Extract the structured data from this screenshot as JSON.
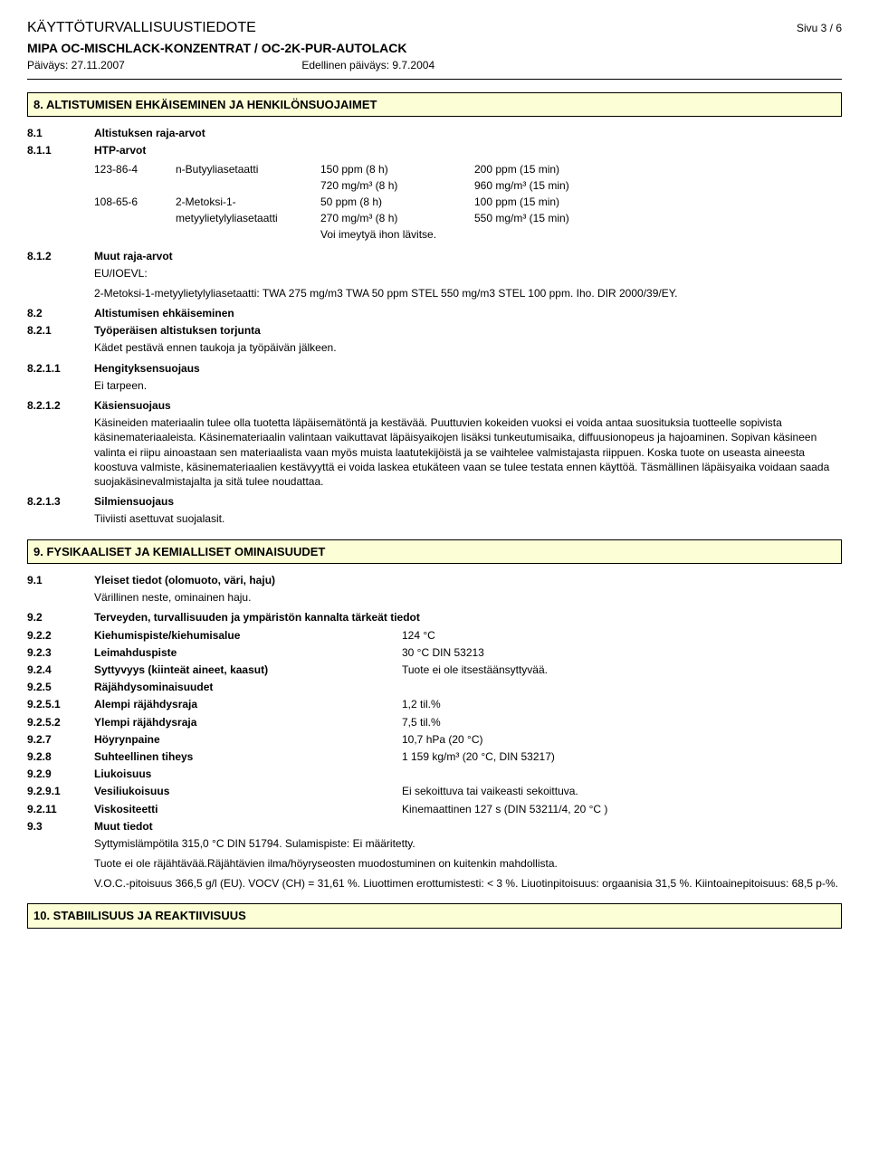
{
  "header": {
    "doc_title": "KÄYTTÖTURVALLISUUSTIEDOTE",
    "page": "Sivu 3 / 6",
    "product": "MIPA OC-MISCHLACK-KONZENTRAT / OC-2K-PUR-AUTOLACK",
    "date_label": "Päiväys: 27.11.2007",
    "prev_date_label": "Edellinen päiväys: 9.7.2004"
  },
  "s8": {
    "title": "8. ALTISTUMISEN EHKÄISEMINEN JA HENKILÖNSUOJAIMET",
    "r81_num": "8.1",
    "r81_lbl": "Altistuksen raja-arvot",
    "r811_num": "8.1.1",
    "r811_lbl": "HTP-arvot",
    "htp": {
      "rows": [
        {
          "c1": "123-86-4",
          "c2": "n-Butyyliasetaatti",
          "c3": "150 ppm (8 h)",
          "c4": "200 ppm (15 min)"
        },
        {
          "c1": "",
          "c2": "",
          "c3": "720 mg/m³ (8 h)",
          "c4": "960 mg/m³ (15 min)"
        },
        {
          "c1": "108-65-6",
          "c2": "2-Metoksi-1-",
          "c3": "50 ppm (8 h)",
          "c4": "100 ppm (15 min)"
        },
        {
          "c1": "",
          "c2": "metyylietylyliasetaatti",
          "c3": "270 mg/m³ (8 h)",
          "c4": "550 mg/m³ (15 min)"
        },
        {
          "c1": "",
          "c2": "",
          "c3": "Voi imeytyä ihon lävitse.",
          "c4": ""
        }
      ]
    },
    "r812_num": "8.1.2",
    "r812_lbl": "Muut raja-arvot",
    "r812_body_1": "EU/IOEVL:",
    "r812_body_2": "2-Metoksi-1-metyylietylyliasetaatti: TWA 275 mg/m3 TWA 50 ppm STEL 550 mg/m3 STEL 100 ppm. Iho. DIR 2000/39/EY.",
    "r82_num": "8.2",
    "r82_lbl": "Altistumisen ehkäiseminen",
    "r821_num": "8.2.1",
    "r821_lbl": "Työperäisen altistuksen torjunta",
    "r821_body": "Kädet pestävä ennen taukoja ja työpäivän jälkeen.",
    "r8211_num": "8.2.1.1",
    "r8211_lbl": "Hengityksensuojaus",
    "r8211_body": "Ei tarpeen.",
    "r8212_num": "8.2.1.2",
    "r8212_lbl": "Käsiensuojaus",
    "r8212_body": "Käsineiden materiaalin tulee olla tuotetta läpäisemätöntä ja kestävää. Puuttuvien kokeiden vuoksi ei voida antaa suosituksia tuotteelle sopivista käsinemateriaaleista. Käsinemateriaalin valintaan vaikuttavat läpäisyaikojen lisäksi tunkeutumisaika, diffuusionopeus ja hajoaminen. Sopivan käsineen valinta ei riipu ainoastaan sen materiaalista vaan myös muista laatutekijöistä ja se vaihtelee valmistajasta riippuen. Koska tuote on useasta aineesta koostuva valmiste, käsinemateriaalien kestävyyttä ei voida laskea etukäteen vaan se tulee testata ennen käyttöä. Täsmällinen läpäisyaika voidaan saada suojakäsinevalmistajalta ja sitä tulee noudattaa.",
    "r8213_num": "8.2.1.3",
    "r8213_lbl": "Silmiensuojaus",
    "r8213_body": "Tiiviisti asettuvat suojalasit."
  },
  "s9": {
    "title": "9. FYSIKAALISET JA KEMIALLISET OMINAISUUDET",
    "r91_num": "9.1",
    "r91_lbl": "Yleiset tiedot (olomuoto, väri, haju)",
    "r91_body": "Värillinen neste, ominainen haju.",
    "r92_num": "9.2",
    "r92_lbl": "Terveyden, turvallisuuden ja ympäristön kannalta tärkeät tiedot",
    "r922_num": "9.2.2",
    "r922_lbl": "Kiehumispiste/kiehumisalue",
    "r922_val": "124 °C",
    "r923_num": "9.2.3",
    "r923_lbl": "Leimahduspiste",
    "r923_val": "30 °C   DIN 53213",
    "r924_num": "9.2.4",
    "r924_lbl": "Syttyvyys (kiinteät aineet, kaasut)",
    "r924_val": "Tuote ei ole itsestäänsyttyvää.",
    "r925_num": "9.2.5",
    "r925_lbl": "Räjähdysominaisuudet",
    "r9251_num": "9.2.5.1",
    "r9251_lbl": "Alempi räjähdysraja",
    "r9251_val": "1,2 til.%",
    "r9252_num": "9.2.5.2",
    "r9252_lbl": "Ylempi räjähdysraja",
    "r9252_val": "7,5 til.%",
    "r927_num": "9.2.7",
    "r927_lbl": "Höyrynpaine",
    "r927_val": "10,7 hPa (20 °C)",
    "r928_num": "9.2.8",
    "r928_lbl": "Suhteellinen tiheys",
    "r928_val": "1 159 kg/m³ (20 °C, DIN 53217)",
    "r929_num": "9.2.9",
    "r929_lbl": "Liukoisuus",
    "r9291_num": "9.2.9.1",
    "r9291_lbl": "Vesiliukoisuus",
    "r9291_val": "Ei sekoittuva tai vaikeasti sekoittuva.",
    "r9211_num": "9.2.11",
    "r9211_lbl": "Viskositeetti",
    "r9211_val": "Kinemaattinen 127 s (DIN 53211/4, 20 °C )",
    "r93_num": "9.3",
    "r93_lbl": "Muut tiedot",
    "r93_body_1": "Syttymislämpötila 315,0 °C DIN 51794. Sulamispiste: Ei määritetty.",
    "r93_body_2": "Tuote ei ole räjähtävää.Räjähtävien ilma/höyryseosten muodostuminen on kuitenkin mahdollista.",
    "r93_body_3": "V.O.C.-pitoisuus 366,5 g/l (EU). VOCV (CH) = 31,61 %. Liuottimen erottumistesti: < 3 %. Liuotinpitoisuus: orgaanisia 31,5 %. Kiintoainepitoisuus: 68,5 p-%."
  },
  "s10": {
    "title": "10. STABIILISUUS JA REAKTIIVISUUS"
  }
}
